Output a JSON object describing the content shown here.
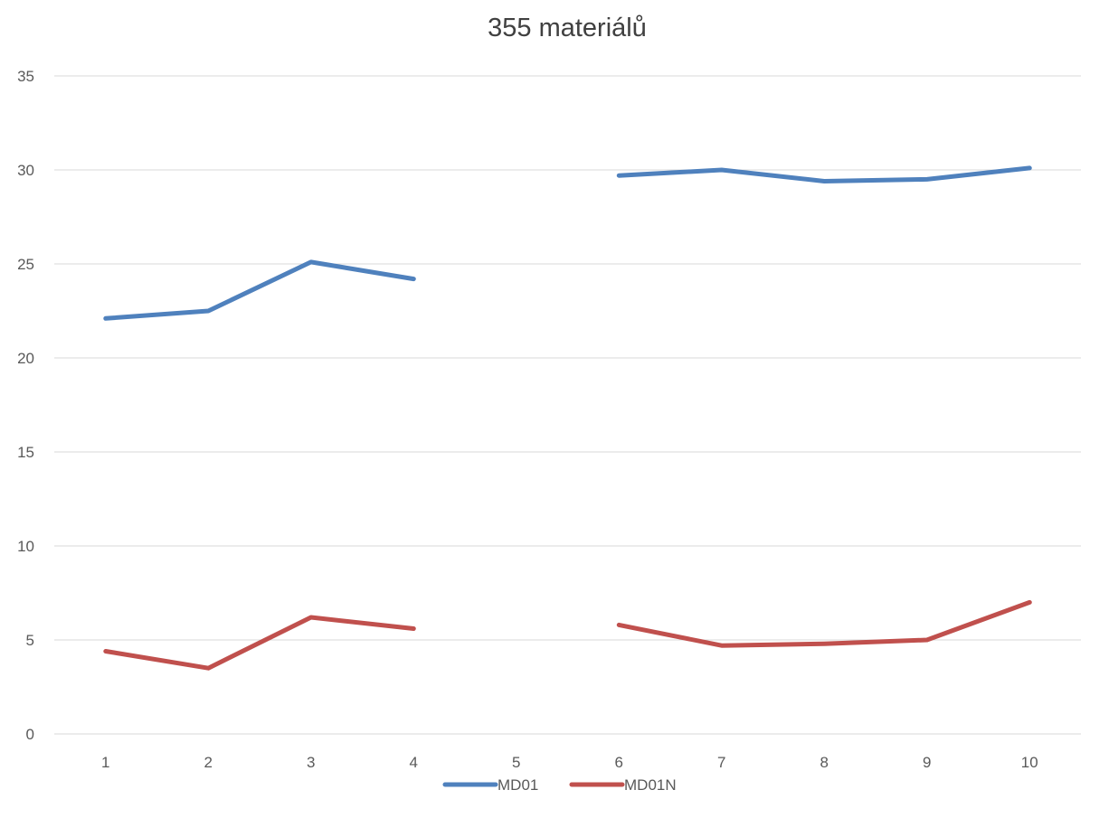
{
  "chart_data": {
    "type": "line",
    "title": "355 materiálů",
    "xlabel": "",
    "ylabel": "",
    "categories": [
      "1",
      "2",
      "3",
      "4",
      "5",
      "6",
      "7",
      "8",
      "9",
      "10"
    ],
    "ylim": [
      0,
      35
    ],
    "yticks": [
      0,
      5,
      10,
      15,
      20,
      25,
      30,
      35
    ],
    "grid": true,
    "legend": "bottom",
    "series": [
      {
        "name": "MD01",
        "color": "#4f81bd",
        "values": [
          22.1,
          22.5,
          25.1,
          24.2,
          null,
          29.7,
          30.0,
          29.4,
          29.5,
          30.1
        ]
      },
      {
        "name": "MD01N",
        "color": "#c0504d",
        "values": [
          4.4,
          3.5,
          6.2,
          5.6,
          null,
          5.8,
          4.7,
          4.8,
          5.0,
          7.0
        ]
      }
    ]
  }
}
